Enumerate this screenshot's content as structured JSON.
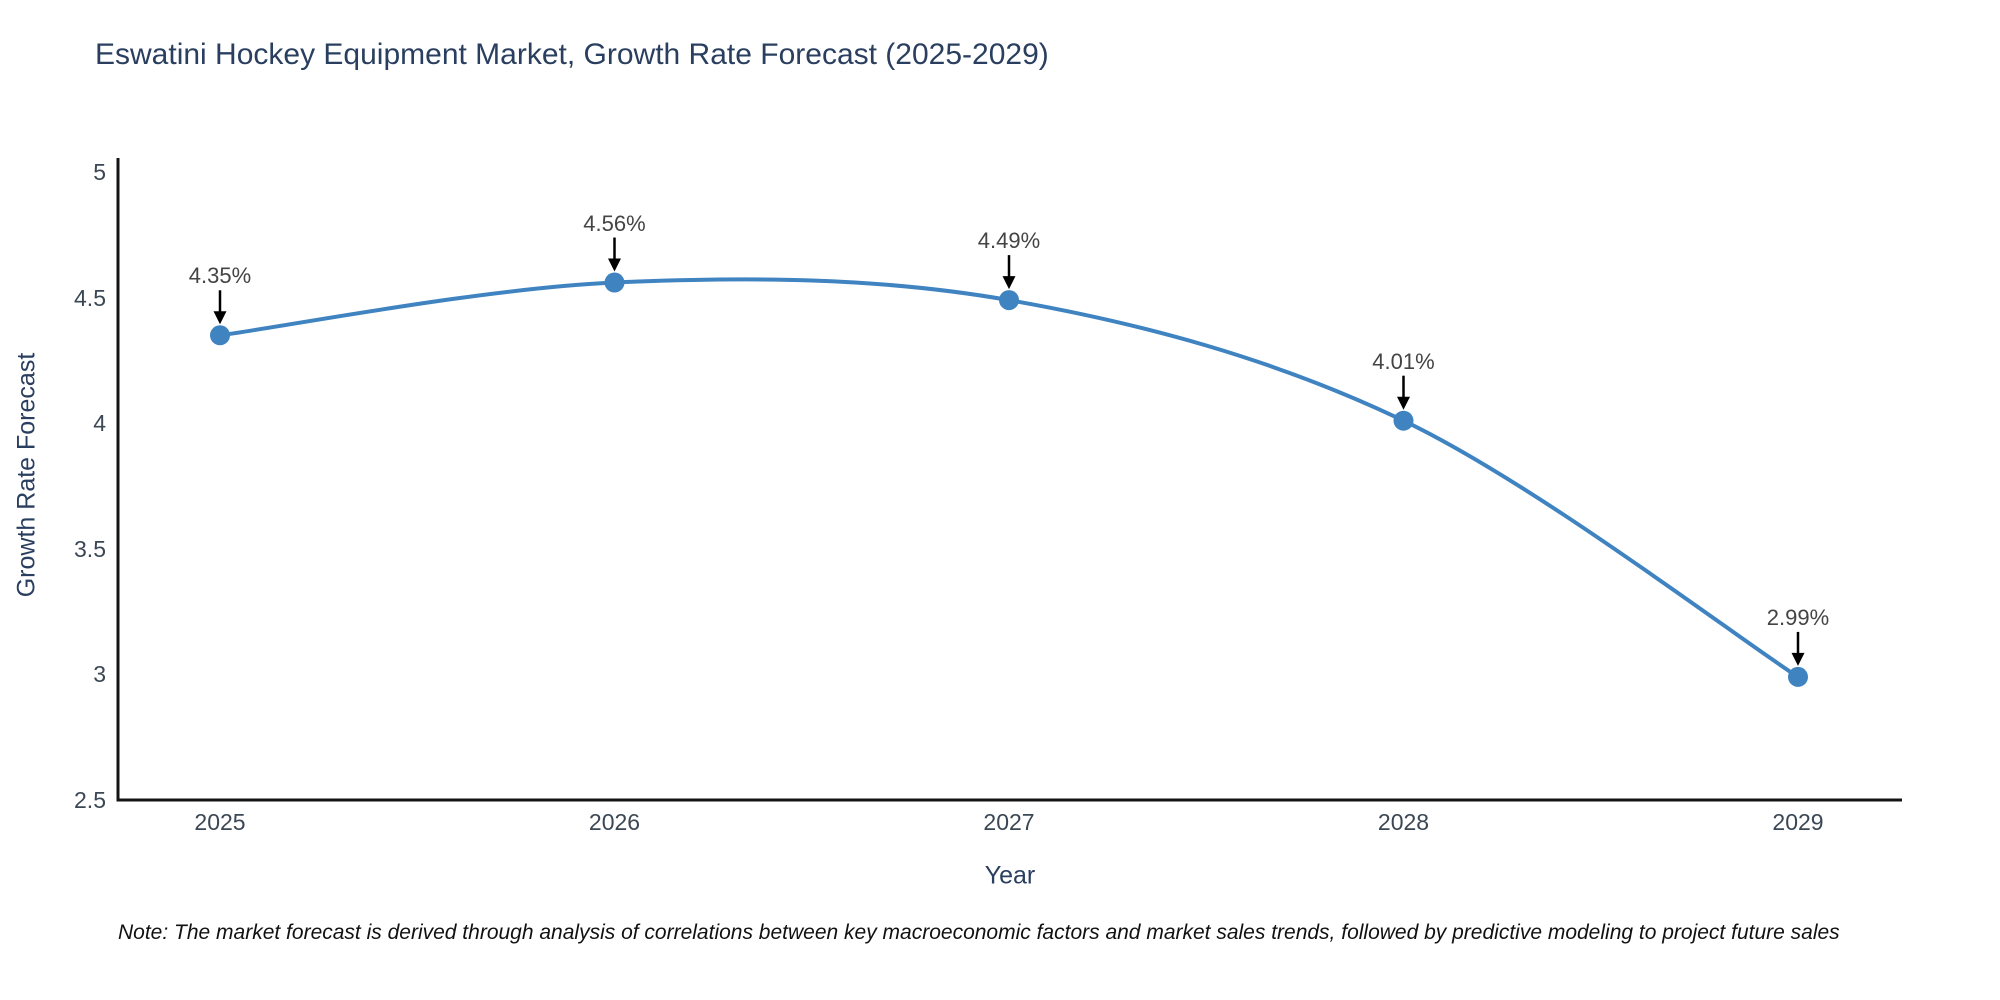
{
  "title": "Eswatini Hockey Equipment Market, Growth Rate Forecast (2025-2029)",
  "note": "Note: The market forecast is derived through analysis of correlations between key macroeconomic factors and market sales trends, followed by predictive modeling to project future sales",
  "chart_data": {
    "type": "line",
    "title": "Eswatini Hockey Equipment Market, Growth Rate Forecast (2025-2029)",
    "xlabel": "Year",
    "ylabel": "Growth Rate Forecast",
    "categories": [
      "2025",
      "2026",
      "2027",
      "2028",
      "2029"
    ],
    "series": [
      {
        "name": "Growth Rate Forecast",
        "values": [
          4.35,
          4.56,
          4.49,
          4.01,
          2.99
        ],
        "point_labels": [
          "4.35%",
          "4.56%",
          "4.49%",
          "4.01%",
          "2.99%"
        ]
      }
    ],
    "ylim": [
      2.5,
      5
    ],
    "yticks": [
      5,
      4.5,
      4,
      3.5,
      3,
      2.5
    ],
    "grid": false,
    "legend_position": "none",
    "curve": "spline",
    "line_color": "#3f83c1",
    "marker_color": "#3f83c1",
    "axis_color": "#141414",
    "annotation_arrow_color": "#000000"
  },
  "colors": {
    "background": "#ffffff",
    "title_text": "#2a3f5f",
    "tick_text": "#3b4754",
    "annotation_text": "#444444"
  }
}
